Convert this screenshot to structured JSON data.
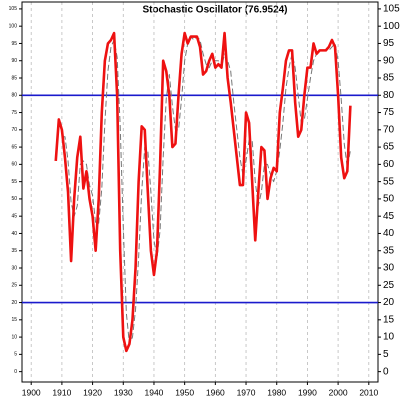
{
  "chart_data": {
    "type": "line",
    "title": "Stochastic Oscillator (76.9524)",
    "x": [
      1908,
      1909,
      1910,
      1911,
      1912,
      1913,
      1914,
      1915,
      1916,
      1917,
      1918,
      1919,
      1920,
      1921,
      1922,
      1923,
      1924,
      1925,
      1926,
      1927,
      1928,
      1929,
      1930,
      1931,
      1932,
      1933,
      1934,
      1935,
      1936,
      1937,
      1938,
      1939,
      1940,
      1941,
      1942,
      1943,
      1944,
      1945,
      1946,
      1947,
      1948,
      1949,
      1950,
      1951,
      1952,
      1953,
      1954,
      1955,
      1956,
      1957,
      1958,
      1959,
      1960,
      1961,
      1962,
      1963,
      1964,
      1965,
      1966,
      1967,
      1968,
      1969,
      1970,
      1971,
      1972,
      1973,
      1974,
      1975,
      1976,
      1977,
      1978,
      1979,
      1980,
      1981,
      1982,
      1983,
      1984,
      1985,
      1986,
      1987,
      1988,
      1989,
      1990,
      1991,
      1992,
      1993,
      1994,
      1995,
      1996,
      1997,
      1998,
      1999,
      2000,
      2001,
      2002,
      2003,
      2004
    ],
    "series": [
      {
        "color": "#ee1111",
        "values": [
          61,
          73,
          70,
          62,
          52,
          32,
          50,
          62,
          68,
          53,
          58,
          50,
          45,
          35,
          50,
          75,
          90,
          95,
          96,
          98,
          80,
          35,
          10,
          6,
          8,
          15,
          30,
          55,
          71,
          70,
          52,
          35,
          28,
          35,
          60,
          90,
          87,
          80,
          65,
          66,
          80,
          92,
          98,
          95,
          97,
          97,
          97,
          94,
          86,
          87,
          90,
          92,
          88,
          89,
          88,
          98,
          85,
          78,
          70,
          62,
          54,
          54,
          75,
          72,
          55,
          38,
          52,
          65,
          64,
          50,
          56,
          59,
          58,
          75,
          82,
          90,
          93,
          93,
          78,
          68,
          70,
          80,
          88,
          88,
          95,
          92,
          93,
          93,
          93,
          94,
          96,
          94,
          80,
          62,
          56,
          58,
          77
        ]
      },
      {
        "color": "#777777",
        "dashed": true,
        "values": [
          null,
          null,
          68,
          68,
          61,
          49,
          45,
          48,
          60,
          61,
          60,
          54,
          51,
          43,
          43,
          53,
          72,
          87,
          94,
          96,
          91,
          71,
          42,
          17,
          8,
          10,
          18,
          33,
          52,
          65,
          64,
          52,
          38,
          33,
          41,
          62,
          79,
          86,
          77,
          70,
          70,
          79,
          90,
          95,
          97,
          96,
          97,
          96,
          92,
          89,
          88,
          90,
          90,
          90,
          88,
          92,
          90,
          87,
          78,
          70,
          62,
          57,
          61,
          67,
          67,
          55,
          48,
          52,
          60,
          60,
          57,
          55,
          58,
          64,
          72,
          82,
          88,
          92,
          88,
          80,
          72,
          73,
          79,
          85,
          90,
          92,
          93,
          93,
          93,
          93,
          94,
          95,
          90,
          79,
          66,
          59,
          64
        ]
      }
    ],
    "hlines": [
      80,
      20
    ],
    "hline_color": "#1a1acc",
    "xlim": [
      1897,
      2013
    ],
    "xticks": [
      1900,
      1910,
      1920,
      1930,
      1940,
      1950,
      1960,
      1970,
      1980,
      1990,
      2000,
      2010
    ],
    "ylim": [
      -3,
      107
    ],
    "yticks": [
      0,
      5,
      10,
      15,
      20,
      25,
      30,
      35,
      40,
      45,
      50,
      55,
      60,
      65,
      70,
      75,
      80,
      85,
      90,
      95,
      100,
      105
    ],
    "grid": "x"
  }
}
